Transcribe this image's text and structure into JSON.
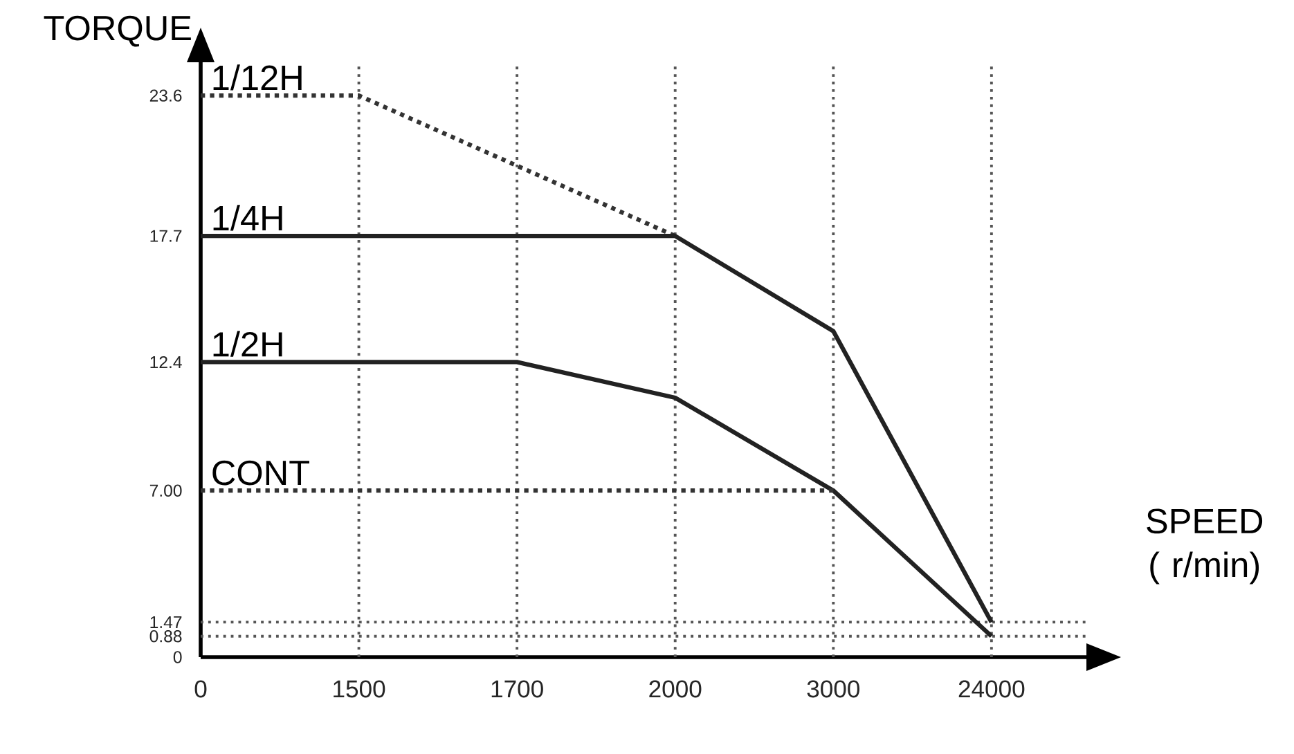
{
  "chart_data": {
    "type": "line",
    "ylabel": "TORQUE",
    "xlabel": "SPEED ( r/min)",
    "categories": [
      "0",
      "1500",
      "1700",
      "2000",
      "3000",
      "24000"
    ],
    "ylim": [
      0,
      25
    ],
    "yticks": [
      0,
      0.88,
      1.47,
      {
        "value": 7,
        "label": "7.00"
      },
      12.4,
      17.7,
      23.6
    ],
    "marker": "none",
    "series": [
      {
        "name": "1/12H",
        "color": "#333333",
        "line_style": "dotted",
        "values": [
          23.6,
          23.6,
          null,
          17.7,
          null,
          null
        ]
      },
      {
        "name": "1/4H",
        "color": "#222222",
        "line_style": "solid",
        "values": [
          17.7,
          17.7,
          17.7,
          17.7,
          13.7,
          1.47
        ]
      },
      {
        "name": "1/2H",
        "color": "#222222",
        "line_style": "solid",
        "values": [
          12.4,
          12.4,
          12.4,
          10.9,
          7.0,
          0.88
        ]
      },
      {
        "name": "CONT",
        "color": "#333333",
        "line_style": "dotted",
        "values": [
          7.0,
          7.0,
          7.0,
          7.0,
          7.0,
          null
        ]
      }
    ],
    "ref_lines": [
      {
        "axis": "x",
        "value": "1500",
        "line_style": "dotted",
        "color": "#555555"
      },
      {
        "axis": "x",
        "value": "1700",
        "line_style": "dotted",
        "color": "#555555"
      },
      {
        "axis": "x",
        "value": "2000",
        "line_style": "dotted",
        "color": "#555555"
      },
      {
        "axis": "x",
        "value": "3000",
        "line_style": "dotted",
        "color": "#555555"
      },
      {
        "axis": "x",
        "value": "24000",
        "line_style": "dotted",
        "color": "#555555"
      },
      {
        "axis": "y",
        "value": 1.47,
        "line_style": "dotted",
        "color": "#555555"
      },
      {
        "axis": "y",
        "value": 0.88,
        "line_style": "dotted",
        "color": "#555555"
      }
    ]
  }
}
